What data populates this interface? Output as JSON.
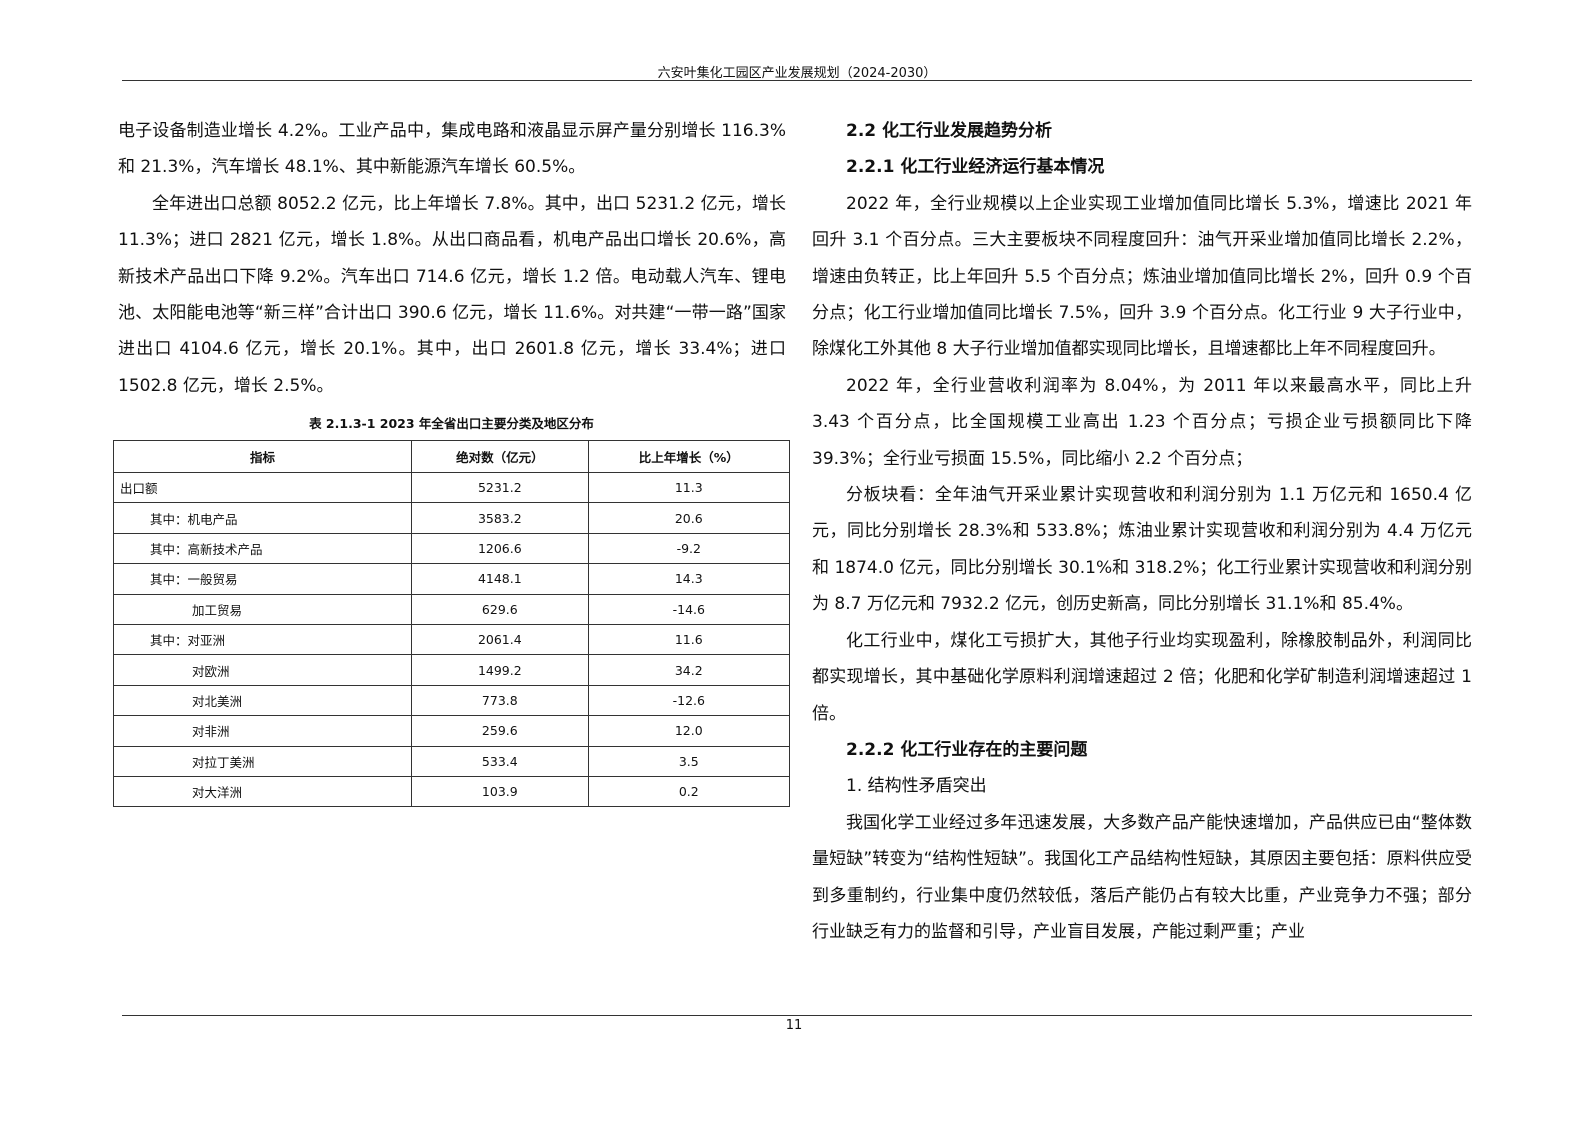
{
  "header": {
    "title": "六安叶集化工园区产业发展规划（2024-2030）"
  },
  "left": {
    "paragraphs": [
      "电子设备制造业增长 4.2%。工业产品中，集成电路和液晶显示屏产量分别增长 116.3%和 21.3%，汽车增长 48.1%、其中新能源汽车增长 60.5%。",
      "全年进出口总额 8052.2 亿元，比上年增长 7.8%。其中，出口 5231.2 亿元，增长 11.3%；进口 2821 亿元，增长 1.8%。从出口商品看，机电产品出口增长 20.6%，高新技术产品出口下降 9.2%。汽车出口 714.6 亿元，增长 1.2 倍。电动载人汽车、锂电池、太阳能电池等“新三样”合计出口 390.6 亿元，增长 11.6%。对共建“一带一路”国家进出口 4104.6 亿元，增长 20.1%。其中，出口 2601.8 亿元，增长 33.4%；进口 1502.8 亿元，增长 2.5%。"
    ],
    "table": {
      "caption": "表 2.1.3-1 2023 年全省出口主要分类及地区分布",
      "columns": [
        "指标",
        "绝对数（亿元）",
        "比上年增长（%）"
      ],
      "rows": [
        [
          "出口额",
          "5231.2",
          "11.3"
        ],
        [
          "其中：机电产品",
          "3583.2",
          "20.6"
        ],
        [
          "其中：高新技术产品",
          "1206.6",
          "-9.2"
        ],
        [
          "其中：一般贸易",
          "4148.1",
          "14.3"
        ],
        [
          "加工贸易",
          "629.6",
          "-14.6"
        ],
        [
          "其中：对亚洲",
          "2061.4",
          "11.6"
        ],
        [
          "对欧洲",
          "1499.2",
          "34.2"
        ],
        [
          "对北美洲",
          "773.8",
          "-12.6"
        ],
        [
          "对非洲",
          "259.6",
          "12.0"
        ],
        [
          "对拉丁美洲",
          "533.4",
          "3.5"
        ],
        [
          "对大洋洲",
          "103.9",
          "0.2"
        ]
      ]
    }
  },
  "right": {
    "heading_1": "2.2 化工行业发展趋势分析",
    "heading_2": "2.2.1 化工行业经济运行基本情况",
    "paragraphs_1": [
      "2022 年，全行业规模以上企业实现工业增加值同比增长 5.3%，增速比 2021 年回升 3.1 个百分点。三大主要板块不同程度回升：油气开采业增加值同比增长 2.2%，增速由负转正，比上年回升 5.5 个百分点；炼油业增加值同比增长 2%，回升 0.9 个百分点；化工行业增加值同比增长 7.5%，回升 3.9 个百分点。化工行业 9 大子行业中，除煤化工外其他 8 大子行业增加值都实现同比增长，且增速都比上年不同程度回升。",
      "2022 年，全行业营收利润率为 8.04%，为 2011 年以来最高水平，同比上升 3.43 个百分点，比全国规模工业高出 1.23 个百分点；亏损企业亏损额同比下降 39.3%；全行业亏损面 15.5%，同比缩小 2.2 个百分点；",
      "分板块看：全年油气开采业累计实现营收和利润分别为 1.1 万亿元和 1650.4 亿元，同比分别增长 28.3%和 533.8%；炼油业累计实现营收和利润分别为 4.4 万亿元和 1874.0 亿元，同比分别增长 30.1%和 318.2%；化工行业累计实现营收和利润分别为 8.7 万亿元和 7932.2 亿元，创历史新高，同比分别增长 31.1%和 85.4%。",
      "化工行业中，煤化工亏损扩大，其他子行业均实现盈利，除橡胶制品外，利润同比都实现增长，其中基础化学原料利润增速超过 2 倍；化肥和化学矿制造利润增速超过 1 倍。"
    ],
    "heading_3": "2.2.2 化工行业存在的主要问题",
    "subheading": "1. 结构性矛盾突出",
    "paragraphs_2": [
      "我国化学工业经过多年迅速发展，大多数产品产能快速增加，产品供应已由“整体数量短缺”转变为“结构性短缺”。我国化工产品结构性短缺，其原因主要包括：原料供应受到多重制约，行业集中度仍然较低，落后产能仍占有较大比重，产业竞争力不强；部分行业缺乏有力的监督和引导，产业盲目发展，产能过剩严重；产业"
    ]
  },
  "footer": {
    "page_number": "11"
  }
}
